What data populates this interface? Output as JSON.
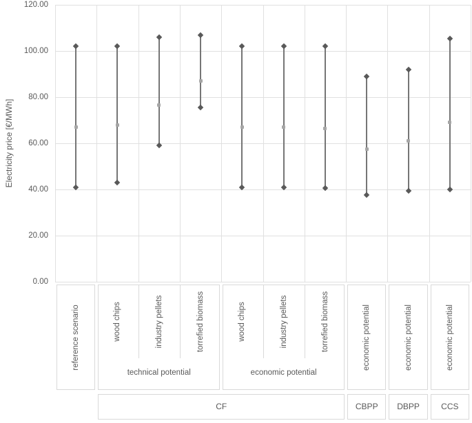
{
  "chart_data": {
    "type": "hilo-range",
    "title": "",
    "ylabel": "Electricity price [€/MWh]",
    "xlabel": "",
    "ylim": [
      0,
      120
    ],
    "yticks": [
      0,
      20,
      40,
      60,
      80,
      100,
      120
    ],
    "ytick_labels": [
      "0.00",
      "20.00",
      "40.00",
      "60.00",
      "80.00",
      "100.00",
      "120.00"
    ],
    "grid": true,
    "legend": null,
    "categories": [
      {
        "label": "reference scenario",
        "high": 102,
        "avg": 67,
        "low": 41
      },
      {
        "label": "wood chips",
        "high": 102,
        "avg": 68,
        "low": 43
      },
      {
        "label": "industry pellets",
        "high": 106,
        "avg": 76.5,
        "low": 59
      },
      {
        "label": "torrefied biomass",
        "high": 107,
        "avg": 87,
        "low": 75.5
      },
      {
        "label": "wood chips",
        "high": 102,
        "avg": 67,
        "low": 41
      },
      {
        "label": "industry pellets",
        "high": 102,
        "avg": 67,
        "low": 41
      },
      {
        "label": "torrefied biomass",
        "high": 102,
        "avg": 66.5,
        "low": 40.5
      },
      {
        "label": "economic potential",
        "high": 89,
        "avg": 57.5,
        "low": 37.5
      },
      {
        "label": "economic potential",
        "high": 92,
        "avg": 61,
        "low": 39.5
      },
      {
        "label": "economic potential",
        "high": 105.5,
        "avg": 69,
        "low": 40
      }
    ],
    "x_axis": {
      "row1_boxes": [
        {
          "col": 0,
          "span": 1,
          "labels": [
            "reference scenario"
          ],
          "group_label": null
        },
        {
          "col": 1,
          "span": 3,
          "labels": [
            "wood chips",
            "industry pellets",
            "torrefied biomass"
          ],
          "group_label": "technical potential"
        },
        {
          "col": 4,
          "span": 3,
          "labels": [
            "wood chips",
            "industry pellets",
            "torrefied biomass"
          ],
          "group_label": "economic potential"
        },
        {
          "col": 7,
          "span": 1,
          "labels": [
            "economic potential"
          ],
          "group_label": null
        },
        {
          "col": 8,
          "span": 1,
          "labels": [
            "economic potential"
          ],
          "group_label": null
        },
        {
          "col": 9,
          "span": 1,
          "labels": [
            "economic potential"
          ],
          "group_label": null
        }
      ],
      "row2_boxes": [
        {
          "col": 1,
          "span": 6,
          "label": "CF"
        },
        {
          "col": 7,
          "span": 1,
          "label": "CBPP"
        },
        {
          "col": 8,
          "span": 1,
          "label": "DBPP"
        },
        {
          "col": 9,
          "span": 1,
          "label": "CCS"
        }
      ]
    }
  },
  "colors": {
    "background": "#ffffff",
    "text": "#595959",
    "gridline": "#e0e0e0",
    "box_border": "#d9d9d9",
    "range_line": "#757575",
    "marker_dark": "#595959",
    "marker_avg": "#a6a6a6"
  }
}
